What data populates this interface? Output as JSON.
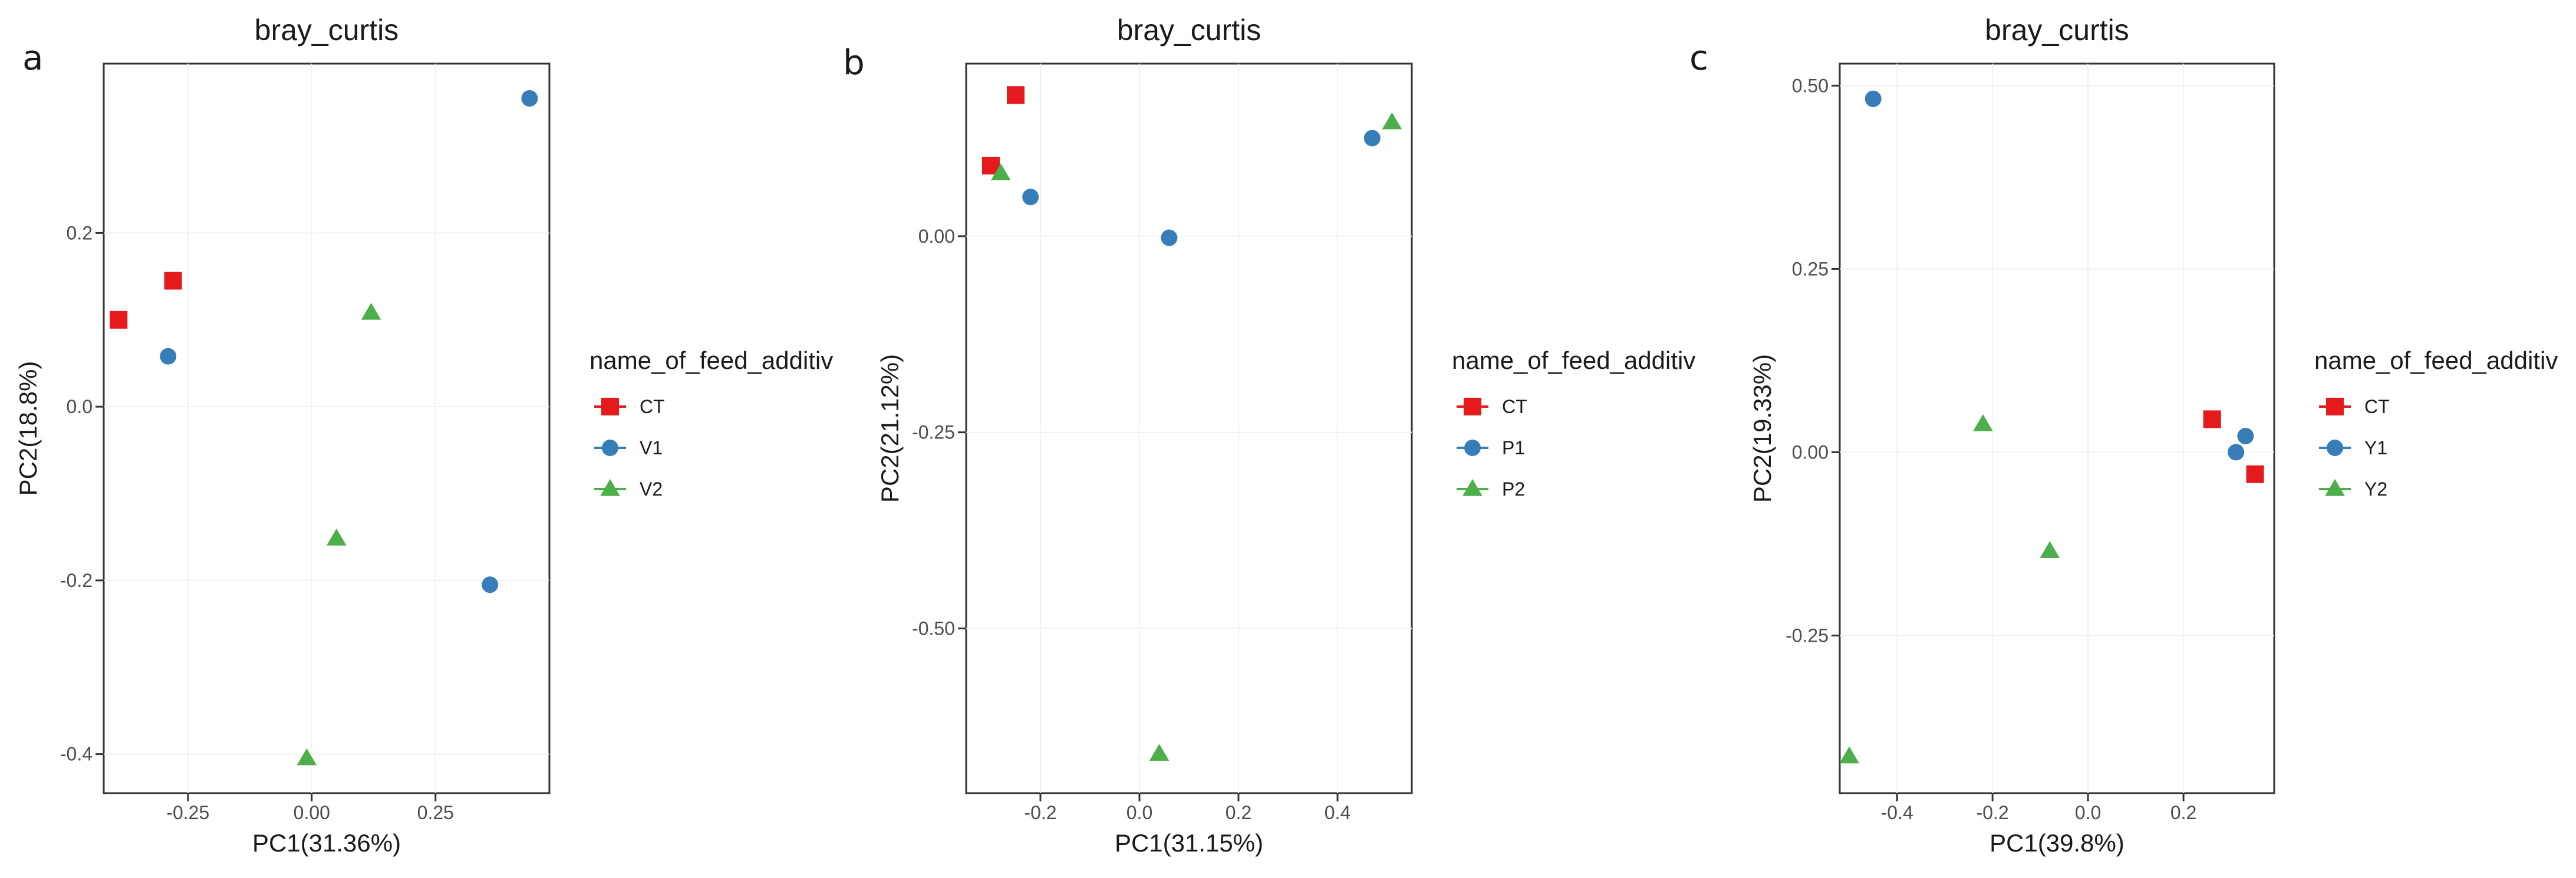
{
  "chart_data": [
    {
      "type": "scatter",
      "panel_label": "a",
      "title": "bray_curtis",
      "xlabel": "PC1(31.36%)",
      "ylabel": "PC2(18.8%)",
      "xlim": [
        -0.42,
        0.48
      ],
      "ylim": [
        -0.445,
        0.395
      ],
      "xticks": [
        -0.25,
        0,
        0.25
      ],
      "xtick_labels": [
        "-0.25",
        "0.00",
        "0.25"
      ],
      "yticks": [
        -0.4,
        -0.2,
        0,
        0.2
      ],
      "ytick_labels": [
        "-0.4",
        "-0.2",
        "0.0",
        "0.2"
      ],
      "grid": true,
      "legend": {
        "title": "name_of_feed_additiv",
        "position": "right"
      },
      "series": [
        {
          "name": "CT",
          "color": "#e41a1c",
          "marker": "square",
          "points": [
            [
              -0.39,
              0.1
            ],
            [
              -0.28,
              0.145
            ]
          ]
        },
        {
          "name": "V1",
          "color": "#377eb8",
          "marker": "circle",
          "points": [
            [
              -0.29,
              0.058
            ],
            [
              0.36,
              -0.205
            ],
            [
              0.44,
              0.355
            ]
          ]
        },
        {
          "name": "V2",
          "color": "#4daf4a",
          "marker": "triangle",
          "points": [
            [
              0.12,
              0.108
            ],
            [
              0.05,
              -0.152
            ],
            [
              -0.01,
              -0.405
            ]
          ]
        }
      ]
    },
    {
      "type": "scatter",
      "panel_label": "b",
      "title": "bray_curtis",
      "xlabel": "PC1(31.15%)",
      "ylabel": "PC2(21.12%)",
      "xlim": [
        -0.35,
        0.55
      ],
      "ylim": [
        -0.71,
        0.22
      ],
      "xticks": [
        -0.2,
        0,
        0.2,
        0.4
      ],
      "xtick_labels": [
        "-0.2",
        "0.0",
        "0.2",
        "0.4"
      ],
      "yticks": [
        -0.5,
        -0.25,
        0
      ],
      "ytick_labels": [
        "-0.50",
        "-0.25",
        "0.00"
      ],
      "grid": true,
      "legend": {
        "title": "name_of_feed_additiv",
        "position": "right"
      },
      "series": [
        {
          "name": "CT",
          "color": "#e41a1c",
          "marker": "square",
          "points": [
            [
              -0.3,
              0.09
            ],
            [
              -0.25,
              0.18
            ]
          ]
        },
        {
          "name": "P1",
          "color": "#377eb8",
          "marker": "circle",
          "points": [
            [
              -0.22,
              0.05
            ],
            [
              0.06,
              -0.002
            ],
            [
              0.47,
              0.125
            ]
          ]
        },
        {
          "name": "P2",
          "color": "#4daf4a",
          "marker": "triangle",
          "points": [
            [
              -0.28,
              0.08
            ],
            [
              0.51,
              0.145
            ],
            [
              0.04,
              -0.66
            ]
          ]
        }
      ]
    },
    {
      "type": "scatter",
      "panel_label": "c",
      "title": "bray_curtis",
      "xlabel": "PC1(39.8%)",
      "ylabel": "PC2(19.33%)",
      "xlim": [
        -0.52,
        0.39
      ],
      "ylim": [
        -0.465,
        0.53
      ],
      "xticks": [
        -0.4,
        -0.2,
        0,
        0.2
      ],
      "xtick_labels": [
        "-0.4",
        "-0.2",
        "0.0",
        "0.2"
      ],
      "yticks": [
        -0.25,
        0,
        0.25,
        0.5
      ],
      "ytick_labels": [
        "-0.25",
        "0.00",
        "0.25",
        "0.50"
      ],
      "grid": true,
      "legend": {
        "title": "name_of_feed_additiv",
        "position": "right"
      },
      "series": [
        {
          "name": "CT",
          "color": "#e41a1c",
          "marker": "square",
          "points": [
            [
              0.26,
              0.045
            ],
            [
              0.35,
              -0.03
            ]
          ]
        },
        {
          "name": "Y1",
          "color": "#377eb8",
          "marker": "circle",
          "points": [
            [
              -0.45,
              0.482
            ],
            [
              0.31,
              0.0
            ],
            [
              0.33,
              0.022
            ]
          ]
        },
        {
          "name": "Y2",
          "color": "#4daf4a",
          "marker": "triangle",
          "points": [
            [
              -0.22,
              0.038
            ],
            [
              -0.08,
              -0.135
            ],
            [
              -0.5,
              -0.415
            ]
          ]
        }
      ]
    }
  ]
}
